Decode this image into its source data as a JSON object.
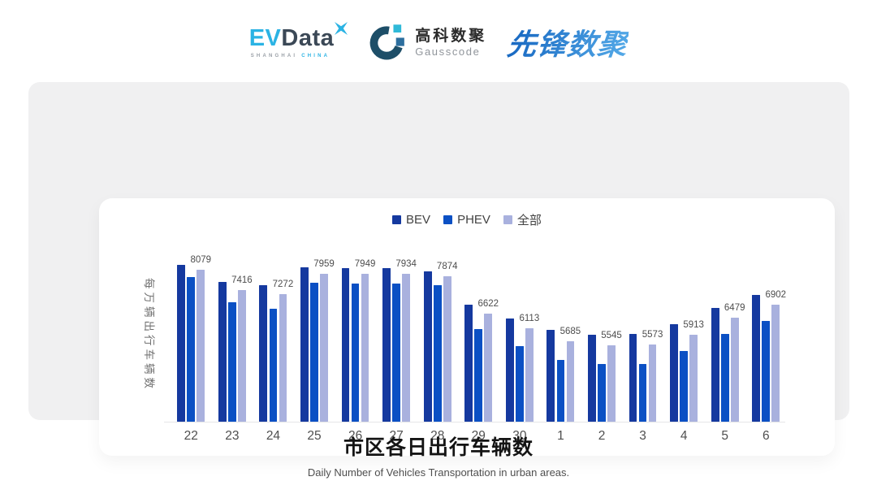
{
  "header": {
    "evdata": {
      "ev": "EV",
      "data": "Data",
      "sub_primary": "SHANGHAI",
      "sub_accent": "CHINA",
      "accent_color": "#2bb3e4",
      "dark_color": "#3b4856",
      "sub_gray": "#9ba1a8"
    },
    "gausscode": {
      "cn": "高科数聚",
      "en": "Gausscode",
      "cn_color": "#2a2a2a",
      "en_color": "#90959b",
      "ring_color": "#1d4e68",
      "accent_color": "#2fb9d8",
      "square_color": "#2c6e9e"
    },
    "pioneer": {
      "text": "先锋数聚",
      "gradient_start": "#1565c0",
      "gradient_end": "#54aae8"
    }
  },
  "chart_data": {
    "type": "bar",
    "title": "市区各日出行车辆数",
    "subtitle": "Daily Number of Vehicles Transportation in urban areas.",
    "ylabel": "每万辆出行车辆数",
    "xlabel": "",
    "categories": [
      "22",
      "23",
      "24",
      "25",
      "26",
      "27",
      "28",
      "29",
      "30",
      "1",
      "2",
      "3",
      "4",
      "5",
      "6"
    ],
    "series": [
      {
        "name": "BEV",
        "key": "bev",
        "color": "#15399f",
        "values": [
          8240,
          7680,
          7570,
          8160,
          8130,
          8150,
          8040,
          6920,
          6440,
          6060,
          5900,
          5930,
          6250,
          6800,
          7230
        ]
      },
      {
        "name": "PHEV",
        "key": "phev",
        "color": "#0b50c4",
        "values": [
          7840,
          7000,
          6780,
          7650,
          7630,
          7610,
          7570,
          6110,
          5530,
          5070,
          4930,
          4920,
          5360,
          5930,
          6380
        ]
      },
      {
        "name": "全部",
        "key": "all",
        "color": "#a9b1de",
        "values": [
          8079,
          7416,
          7272,
          7959,
          7949,
          7934,
          7874,
          6622,
          6113,
          5685,
          5545,
          5573,
          5913,
          6479,
          6902
        ],
        "data_labels_shown": true
      }
    ],
    "ylim": [
      3000,
      8600
    ],
    "grid": false,
    "legend_position": "top",
    "label_color": "#4d4d4d",
    "axis_line_color": "#e5e5e7"
  }
}
